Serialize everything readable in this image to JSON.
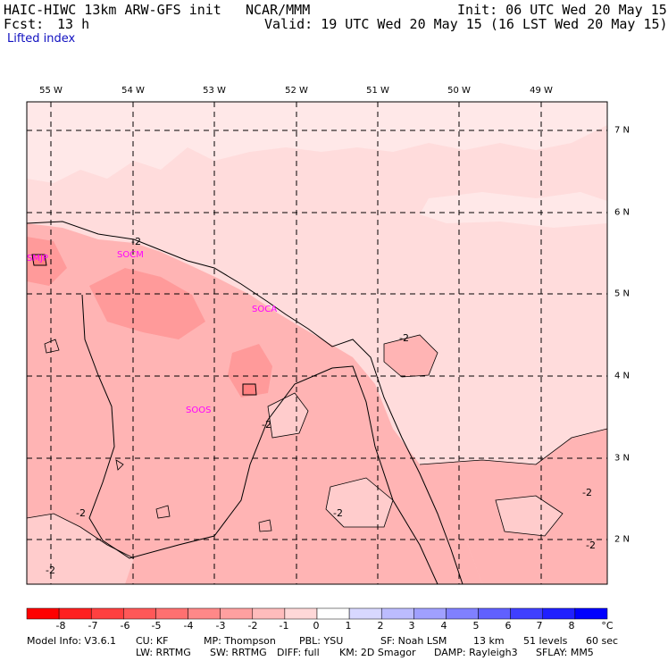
{
  "header": {
    "model": "HAIC-HIWC 13km ARW-GFS init",
    "org": "NCAR/MMM",
    "init": "Init: 06 UTC Wed 20 May 15",
    "fcst_label": "Fcst:",
    "fcst_value": "13 h",
    "valid": "Valid: 19 UTC Wed 20 May 15 (16 LST Wed 20 May 15)",
    "field": "Lifted index"
  },
  "map": {
    "lon_labels": [
      "55 W",
      "54 W",
      "53 W",
      "52 W",
      "51 W",
      "50 W",
      "49 W"
    ],
    "lat_labels": [
      "7 N",
      "6 N",
      "5 N",
      "4 N",
      "3 N",
      "2 N"
    ],
    "stations": [
      "SMJP",
      "SOCM",
      "SOCA",
      "SOOS"
    ],
    "contour_label": "-2",
    "colors": {
      "background": "#ffdcdc",
      "light": "#ffe8e8",
      "medium": "#ffb4b4",
      "strong": "#ff9a9a",
      "coast": "#000000",
      "grid": "#000000",
      "station": "#ff00ff"
    }
  },
  "colorbar": {
    "ticks": [
      "-8",
      "-7",
      "-6",
      "-5",
      "-4",
      "-3",
      "-2",
      "-1",
      "0",
      "1",
      "2",
      "3",
      "4",
      "5",
      "6",
      "7",
      "8"
    ],
    "unit": "°C",
    "colors": [
      "#ff0000",
      "#ff2020",
      "#ff4040",
      "#ff5858",
      "#ff7070",
      "#ff8888",
      "#ffa0a0",
      "#ffbcbc",
      "#ffd8d8",
      "#ffffff",
      "#d8d8ff",
      "#bcbcff",
      "#a0a0ff",
      "#8080ff",
      "#6060ff",
      "#4040ff",
      "#2020ff",
      "#0000ff"
    ]
  },
  "footer": {
    "line1": [
      "Model Info: V3.6.1",
      "CU: KF",
      "MP: Thompson",
      "PBL: YSU",
      "SF: Noah LSM",
      "13 km",
      "51 levels",
      "60 sec"
    ],
    "line2": [
      "LW: RRTMG",
      "SW: RRTMG",
      "DIFF: full",
      "KM: 2D Smagor",
      "DAMP: Rayleigh3",
      "SFLAY: MM5"
    ]
  }
}
